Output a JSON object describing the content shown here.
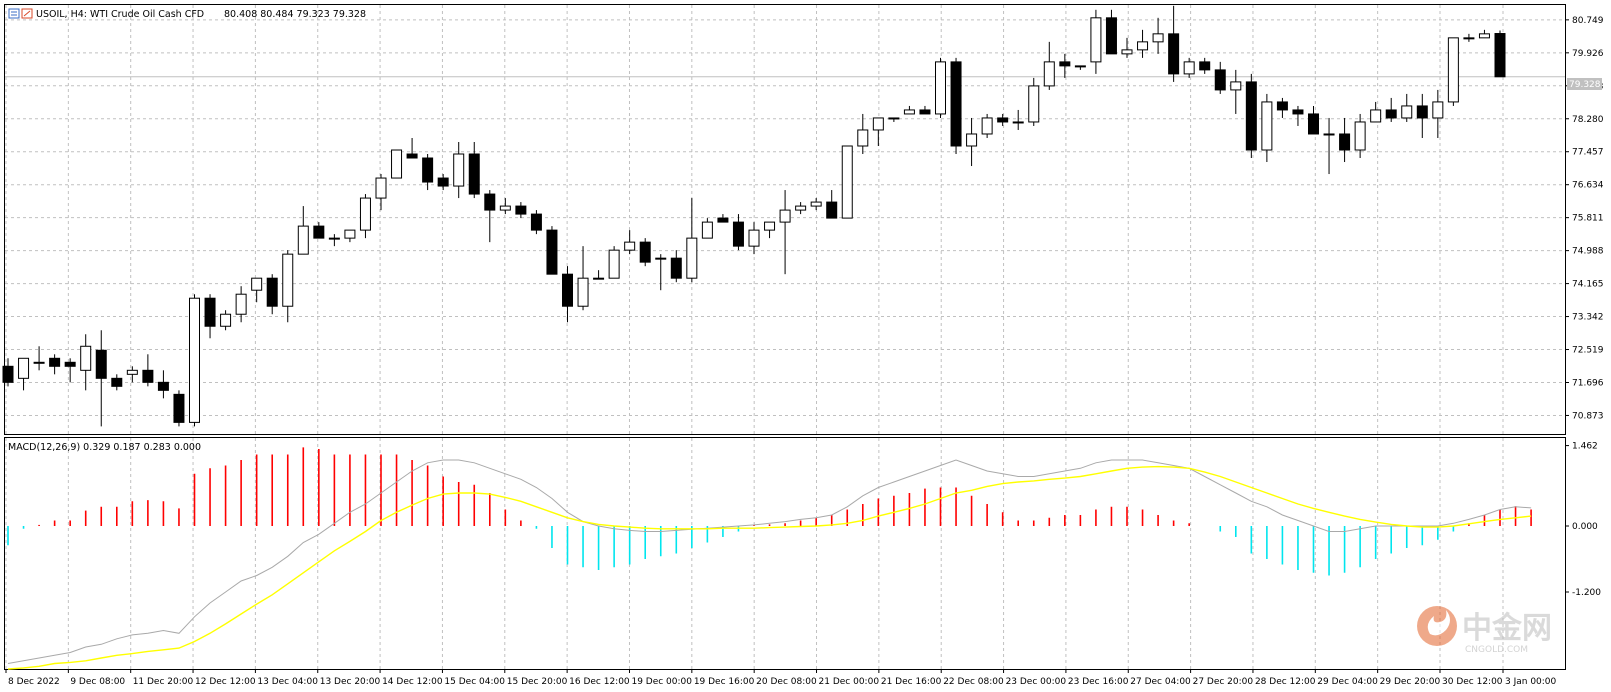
{
  "header": {
    "symbol_line": "USOIL, H4:  WTI Crude Oil Cash CFD",
    "ohlc_line": "80.408 80.484 79.323 79.328"
  },
  "current_price_label": "79.328",
  "macd_header": "MACD(12,26,9) 0.329 0.187 0.283 0.000",
  "watermark": {
    "chinese": "中金网",
    "latin": "CNGOLD.COM",
    "logo_icon": "cngold-flame-logo-icon"
  },
  "colors": {
    "bull_body": "#ffffff",
    "bear_body": "#000000",
    "grid": "#c0c0c0",
    "hist_pos": "#ff0000",
    "hist_neg": "#00e5ee",
    "macd_line": "#a9a9a9",
    "signal_line": "#ffff00",
    "current_price_line": "#c0c0c0"
  },
  "chart_data": [
    {
      "type": "candlestick",
      "title": "USOIL, H4:  WTI Crude Oil Cash CFD",
      "y_ticks": [
        "80.749",
        "79.926",
        "79.103",
        "78.280",
        "77.457",
        "76.634",
        "75.811",
        "74.988",
        "74.165",
        "73.342",
        "72.519",
        "71.696",
        "70.873"
      ],
      "y_range": [
        70.41,
        81.12
      ],
      "x_labels": [
        "8 Dec 2022",
        "9 Dec 08:00",
        "11 Dec 20:00",
        "12 Dec 12:00",
        "13 Dec 04:00",
        "13 Dec 20:00",
        "14 Dec 12:00",
        "15 Dec 04:00",
        "15 Dec 20:00",
        "16 Dec 12:00",
        "19 Dec 00:00",
        "19 Dec 16:00",
        "20 Dec 08:00",
        "21 Dec 00:00",
        "21 Dec 16:00",
        "22 Dec 08:00",
        "23 Dec 00:00",
        "23 Dec 16:00",
        "27 Dec 04:00",
        "27 Dec 20:00",
        "28 Dec 12:00",
        "29 Dec 04:00",
        "29 Dec 20:00",
        "30 Dec 12:00",
        "3 Jan 00:00"
      ],
      "current_price": 79.328,
      "grid": true,
      "ohlc": [
        [
          72.1,
          72.3,
          71.6,
          71.7
        ],
        [
          71.8,
          72.3,
          71.5,
          72.3
        ],
        [
          72.2,
          72.6,
          72.0,
          72.2
        ],
        [
          72.3,
          72.4,
          71.9,
          72.1
        ],
        [
          72.2,
          72.3,
          71.7,
          72.1
        ],
        [
          72.0,
          72.9,
          71.5,
          72.6
        ],
        [
          72.5,
          73.0,
          70.6,
          71.8
        ],
        [
          71.8,
          71.9,
          71.5,
          71.6
        ],
        [
          71.9,
          72.1,
          71.7,
          72.0
        ],
        [
          72.0,
          72.4,
          71.6,
          71.7
        ],
        [
          71.7,
          72.0,
          71.3,
          71.5
        ],
        [
          71.4,
          71.5,
          70.6,
          70.7
        ],
        [
          70.7,
          73.9,
          70.6,
          73.8
        ],
        [
          73.8,
          73.9,
          72.8,
          73.1
        ],
        [
          73.1,
          73.5,
          73.0,
          73.4
        ],
        [
          73.4,
          74.1,
          73.2,
          73.9
        ],
        [
          74.0,
          74.3,
          73.7,
          74.3
        ],
        [
          74.3,
          74.4,
          73.4,
          73.6
        ],
        [
          73.6,
          75.0,
          73.2,
          74.9
        ],
        [
          74.9,
          76.1,
          74.9,
          75.6
        ],
        [
          75.6,
          75.7,
          75.3,
          75.3
        ],
        [
          75.3,
          75.4,
          75.1,
          75.3
        ],
        [
          75.3,
          75.5,
          75.2,
          75.5
        ],
        [
          75.5,
          76.4,
          75.3,
          76.3
        ],
        [
          76.3,
          76.9,
          76.0,
          76.8
        ],
        [
          76.8,
          77.4,
          76.8,
          77.5
        ],
        [
          77.4,
          77.8,
          77.3,
          77.3
        ],
        [
          77.3,
          77.4,
          76.5,
          76.7
        ],
        [
          76.8,
          76.9,
          76.5,
          76.6
        ],
        [
          76.6,
          77.7,
          76.3,
          77.4
        ],
        [
          77.4,
          77.7,
          76.3,
          76.4
        ],
        [
          76.4,
          76.5,
          75.2,
          76.0
        ],
        [
          76.0,
          76.3,
          75.9,
          76.1
        ],
        [
          76.1,
          76.2,
          75.8,
          75.9
        ],
        [
          75.9,
          76.0,
          75.4,
          75.5
        ],
        [
          75.5,
          75.6,
          74.4,
          74.4
        ],
        [
          74.4,
          74.6,
          73.2,
          73.6
        ],
        [
          73.6,
          75.1,
          73.5,
          74.3
        ],
        [
          74.3,
          74.5,
          74.3,
          74.3
        ],
        [
          74.3,
          75.1,
          74.3,
          75.0
        ],
        [
          75.0,
          75.5,
          74.9,
          75.2
        ],
        [
          75.2,
          75.3,
          74.6,
          74.7
        ],
        [
          74.8,
          74.9,
          74.0,
          74.8
        ],
        [
          74.8,
          75.0,
          74.2,
          74.3
        ],
        [
          74.3,
          76.3,
          74.2,
          75.3
        ],
        [
          75.3,
          75.8,
          75.3,
          75.7
        ],
        [
          75.8,
          75.9,
          75.7,
          75.7
        ],
        [
          75.7,
          75.9,
          75.0,
          75.1
        ],
        [
          75.1,
          75.7,
          74.9,
          75.5
        ],
        [
          75.5,
          75.7,
          75.3,
          75.7
        ],
        [
          75.7,
          76.5,
          74.4,
          76.0
        ],
        [
          76.0,
          76.2,
          75.9,
          76.1
        ],
        [
          76.1,
          76.3,
          76.0,
          76.2
        ],
        [
          76.2,
          76.5,
          75.8,
          75.8
        ],
        [
          75.8,
          77.6,
          75.8,
          77.6
        ],
        [
          77.6,
          78.4,
          77.4,
          78.0
        ],
        [
          78.0,
          78.3,
          77.6,
          78.3
        ],
        [
          78.3,
          78.3,
          78.2,
          78.3
        ],
        [
          78.4,
          78.6,
          78.4,
          78.5
        ],
        [
          78.5,
          78.6,
          78.4,
          78.4
        ],
        [
          78.4,
          79.8,
          78.3,
          79.7
        ],
        [
          79.7,
          79.8,
          77.4,
          77.6
        ],
        [
          77.6,
          78.3,
          77.1,
          77.9
        ],
        [
          77.9,
          78.4,
          77.8,
          78.3
        ],
        [
          78.3,
          78.4,
          78.1,
          78.2
        ],
        [
          78.2,
          78.5,
          78.0,
          78.2
        ],
        [
          78.2,
          79.3,
          78.1,
          79.1
        ],
        [
          79.1,
          80.2,
          79.0,
          79.7
        ],
        [
          79.7,
          79.9,
          79.3,
          79.6
        ],
        [
          79.6,
          79.6,
          79.5,
          79.6
        ],
        [
          79.7,
          81.0,
          79.4,
          80.8
        ],
        [
          80.8,
          81.0,
          79.9,
          79.9
        ],
        [
          79.9,
          80.3,
          79.8,
          80.0
        ],
        [
          80.0,
          80.5,
          79.8,
          80.2
        ],
        [
          80.2,
          80.8,
          79.9,
          80.4
        ],
        [
          80.4,
          81.1,
          79.2,
          79.4
        ],
        [
          79.4,
          79.8,
          79.3,
          79.7
        ],
        [
          79.7,
          79.8,
          79.4,
          79.5
        ],
        [
          79.5,
          79.7,
          78.9,
          79.0
        ],
        [
          79.0,
          79.5,
          78.4,
          79.2
        ],
        [
          79.2,
          79.4,
          77.3,
          77.5
        ],
        [
          77.5,
          78.9,
          77.2,
          78.7
        ],
        [
          78.7,
          78.8,
          78.3,
          78.5
        ],
        [
          78.5,
          78.6,
          78.1,
          78.4
        ],
        [
          78.4,
          78.6,
          77.9,
          77.9
        ],
        [
          77.9,
          78.3,
          76.9,
          77.9
        ],
        [
          77.9,
          78.3,
          77.2,
          77.5
        ],
        [
          77.5,
          78.4,
          77.3,
          78.2
        ],
        [
          78.2,
          78.7,
          78.2,
          78.5
        ],
        [
          78.5,
          78.8,
          78.2,
          78.3
        ],
        [
          78.3,
          78.9,
          78.2,
          78.6
        ],
        [
          78.6,
          78.9,
          77.8,
          78.3
        ],
        [
          78.3,
          79.0,
          77.8,
          78.7
        ],
        [
          78.7,
          80.3,
          78.6,
          80.3
        ],
        [
          80.3,
          80.4,
          80.2,
          80.3
        ],
        [
          80.3,
          80.5,
          80.3,
          80.4
        ],
        [
          80.408,
          80.484,
          79.323,
          79.328
        ]
      ]
    },
    {
      "type": "macd",
      "title": "MACD(12,26,9) 0.329 0.187 0.283 0.000",
      "y_ticks": [
        "1.462",
        "0.000",
        "-1.200"
      ],
      "y_range": [
        -2.6,
        1.6
      ],
      "histogram": [
        -0.35,
        -0.05,
        0.02,
        0.1,
        0.1,
        0.28,
        0.35,
        0.35,
        0.45,
        0.47,
        0.45,
        0.32,
        0.95,
        1.05,
        1.1,
        1.2,
        1.3,
        1.3,
        1.3,
        1.43,
        1.4,
        1.3,
        1.3,
        1.3,
        1.3,
        1.3,
        1.2,
        1.1,
        0.9,
        0.8,
        0.75,
        0.6,
        0.3,
        0.1,
        -0.05,
        -0.4,
        -0.7,
        -0.75,
        -0.8,
        -0.75,
        -0.7,
        -0.6,
        -0.55,
        -0.5,
        -0.4,
        -0.3,
        -0.2,
        -0.1,
        0.02,
        0.03,
        0.05,
        0.1,
        0.15,
        0.2,
        0.3,
        0.4,
        0.5,
        0.55,
        0.6,
        0.68,
        0.7,
        0.7,
        0.55,
        0.4,
        0.25,
        0.1,
        0.1,
        0.15,
        0.2,
        0.2,
        0.3,
        0.35,
        0.35,
        0.3,
        0.2,
        0.1,
        0.05,
        0.0,
        -0.1,
        -0.2,
        -0.5,
        -0.6,
        -0.7,
        -0.8,
        -0.85,
        -0.9,
        -0.85,
        -0.75,
        -0.6,
        -0.5,
        -0.4,
        -0.35,
        -0.25,
        -0.1,
        0.05,
        0.2,
        0.3,
        0.36,
        0.3
      ],
      "macd_line": [
        -2.5,
        -2.45,
        -2.4,
        -2.35,
        -2.3,
        -2.2,
        -2.15,
        -2.05,
        -1.98,
        -1.95,
        -1.9,
        -1.95,
        -1.65,
        -1.4,
        -1.2,
        -1.0,
        -0.9,
        -0.75,
        -0.55,
        -0.3,
        -0.15,
        0.05,
        0.25,
        0.4,
        0.6,
        0.8,
        1.0,
        1.15,
        1.2,
        1.2,
        1.15,
        1.05,
        0.95,
        0.85,
        0.7,
        0.5,
        0.25,
        0.08,
        0.0,
        -0.05,
        -0.08,
        -0.1,
        -0.1,
        -0.08,
        -0.06,
        -0.04,
        -0.02,
        0.0,
        0.02,
        0.05,
        0.08,
        0.12,
        0.15,
        0.2,
        0.35,
        0.55,
        0.7,
        0.8,
        0.9,
        1.0,
        1.1,
        1.2,
        1.1,
        1.0,
        0.95,
        0.9,
        0.9,
        0.95,
        1.0,
        1.05,
        1.15,
        1.2,
        1.2,
        1.2,
        1.15,
        1.1,
        1.05,
        0.9,
        0.75,
        0.6,
        0.45,
        0.35,
        0.2,
        0.1,
        0.0,
        -0.1,
        -0.1,
        -0.05,
        0.0,
        0.0,
        0.0,
        0.0,
        0.0,
        0.05,
        0.12,
        0.2,
        0.3,
        0.35,
        0.33
      ],
      "signal_line": [
        -2.6,
        -2.58,
        -2.55,
        -2.5,
        -2.48,
        -2.45,
        -2.4,
        -2.35,
        -2.32,
        -2.28,
        -2.25,
        -2.22,
        -2.1,
        -1.95,
        -1.78,
        -1.6,
        -1.42,
        -1.25,
        -1.05,
        -0.85,
        -0.65,
        -0.45,
        -0.28,
        -0.1,
        0.1,
        0.25,
        0.38,
        0.5,
        0.58,
        0.6,
        0.6,
        0.58,
        0.52,
        0.45,
        0.35,
        0.25,
        0.15,
        0.08,
        0.03,
        0.0,
        -0.02,
        -0.04,
        -0.05,
        -0.05,
        -0.05,
        -0.05,
        -0.04,
        -0.04,
        -0.04,
        -0.03,
        -0.02,
        -0.01,
        0.0,
        0.02,
        0.05,
        0.1,
        0.18,
        0.25,
        0.32,
        0.4,
        0.5,
        0.6,
        0.65,
        0.72,
        0.77,
        0.8,
        0.82,
        0.85,
        0.87,
        0.9,
        0.95,
        1.0,
        1.05,
        1.07,
        1.08,
        1.07,
        1.05,
        0.98,
        0.9,
        0.8,
        0.7,
        0.6,
        0.5,
        0.4,
        0.32,
        0.25,
        0.18,
        0.12,
        0.07,
        0.03,
        0.0,
        -0.02,
        -0.02,
        0.0,
        0.04,
        0.08,
        0.12,
        0.15,
        0.18
      ]
    }
  ]
}
